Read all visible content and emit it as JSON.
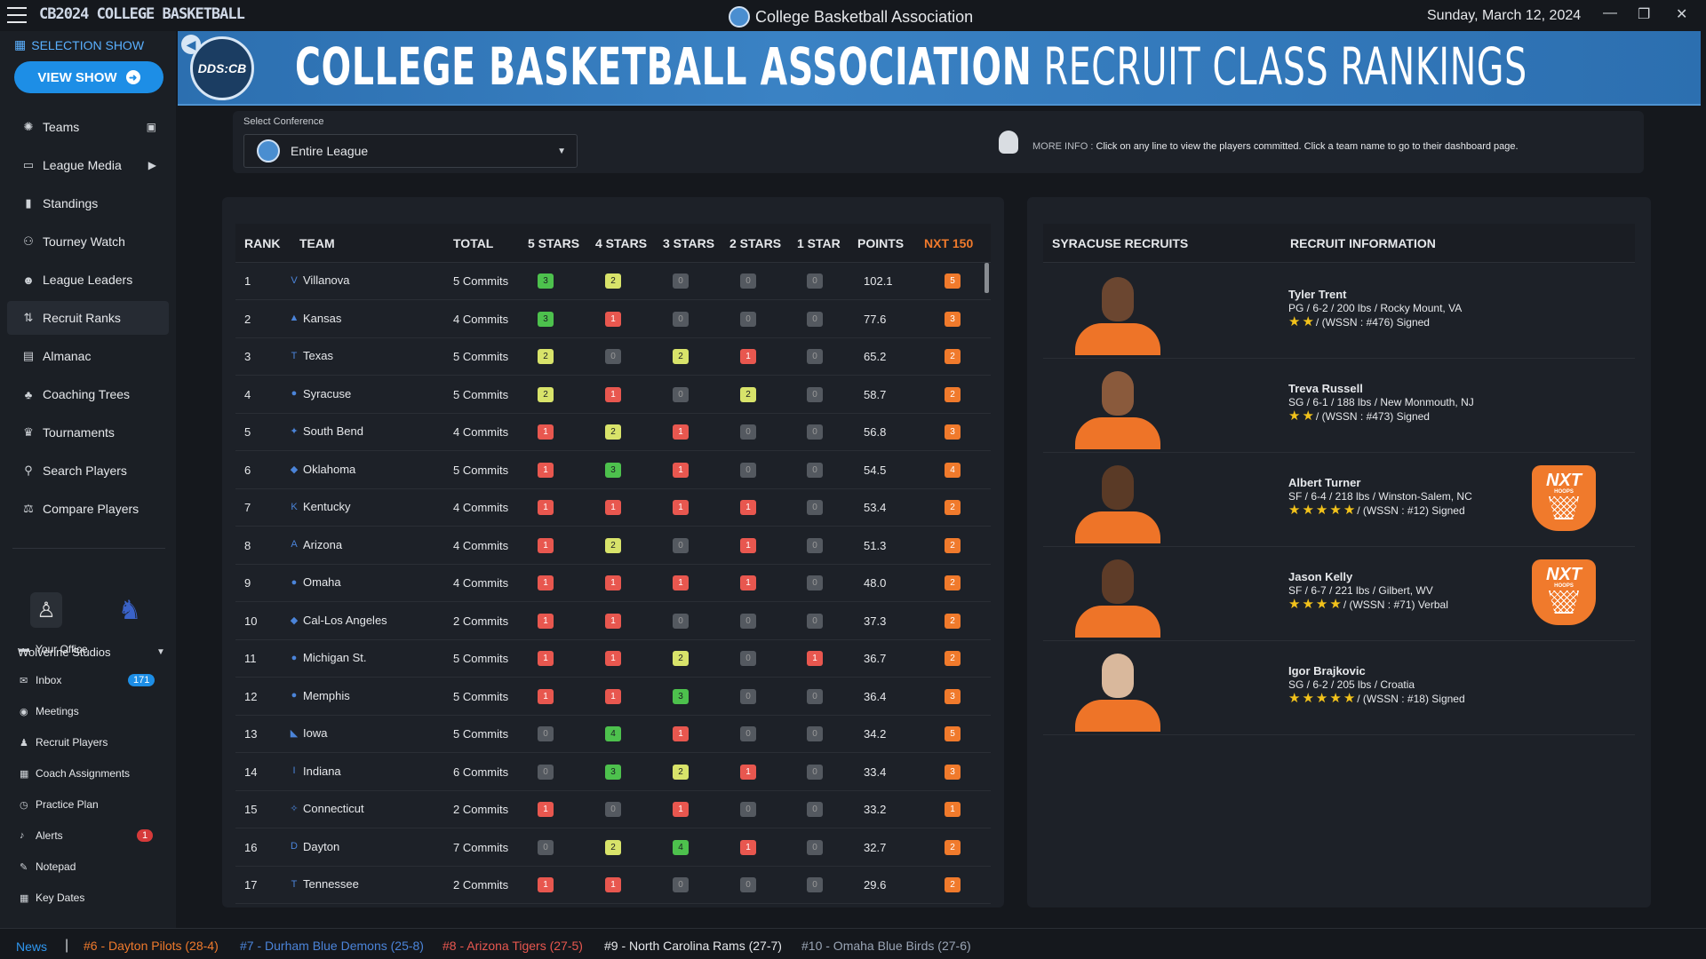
{
  "app": {
    "logo_text": "CB2024 COLLEGE BASKETBALL",
    "window_title": "College Basketball Association",
    "date": "Sunday, March 12, 2024"
  },
  "sidebar": {
    "selection_show": "SELECTION SHOW",
    "view_show": "VIEW SHOW",
    "items": [
      {
        "label": "Teams",
        "icon": "teams-icon"
      },
      {
        "label": "League Media",
        "icon": "media-icon"
      },
      {
        "label": "Standings",
        "icon": "standings-icon"
      },
      {
        "label": "Tourney Watch",
        "icon": "binoculars-icon"
      },
      {
        "label": "League Leaders",
        "icon": "leaders-icon"
      },
      {
        "label": "Recruit Ranks",
        "icon": "sort-icon"
      },
      {
        "label": "Almanac",
        "icon": "almanac-icon"
      },
      {
        "label": "Coaching Trees",
        "icon": "tree-icon"
      },
      {
        "label": "Tournaments",
        "icon": "trophy-icon"
      },
      {
        "label": "Search Players",
        "icon": "search-icon"
      },
      {
        "label": "Compare Players",
        "icon": "compare-icon"
      }
    ],
    "studio": "Wolverine Studios",
    "sub_items": [
      {
        "label": "Your Office"
      },
      {
        "label": "Inbox",
        "badge": "171"
      },
      {
        "label": "Meetings"
      },
      {
        "label": "Recruit Players"
      },
      {
        "label": "Coach Assignments"
      },
      {
        "label": "Practice Plan"
      },
      {
        "label": "Alerts",
        "badge": "1"
      },
      {
        "label": "Notepad"
      },
      {
        "label": "Key Dates"
      }
    ]
  },
  "banner": {
    "logo_text": "DDS:CB",
    "title_bold": "COLLEGE BASKETBALL ASSOCIATION",
    "title_thin": " RECRUIT CLASS RANKINGS"
  },
  "conference": {
    "label": "Select Conference",
    "selected": "Entire League",
    "more_info_label": "MORE INFO :",
    "more_info_text": " Click on any line to view the players committed. Click a team name to go to their dashboard page."
  },
  "table": {
    "headers": [
      "RANK",
      "TEAM",
      "TOTAL",
      "5 STARS",
      "4 STARS",
      "3 STARS",
      "2 STARS",
      "1 STAR",
      "POINTS",
      "NXT 150"
    ],
    "rows": [
      {
        "rank": "1",
        "team": "Villanova",
        "icon": "V",
        "total": "5 Commits",
        "s5": "3",
        "s4": "2",
        "s3": "0",
        "s2": "0",
        "s1": "0",
        "points": "102.1",
        "nxt": "5"
      },
      {
        "rank": "2",
        "team": "Kansas",
        "icon": "▲",
        "total": "4 Commits",
        "s5": "3",
        "s4": "1",
        "s3": "0",
        "s2": "0",
        "s1": "0",
        "points": "77.6",
        "nxt": "3"
      },
      {
        "rank": "3",
        "team": "Texas",
        "icon": "T",
        "total": "5 Commits",
        "s5": "2",
        "s4": "0",
        "s3": "2",
        "s2": "1",
        "s1": "0",
        "points": "65.2",
        "nxt": "2"
      },
      {
        "rank": "4",
        "team": "Syracuse",
        "icon": "●",
        "total": "5 Commits",
        "s5": "2",
        "s4": "1",
        "s3": "0",
        "s2": "2",
        "s1": "0",
        "points": "58.7",
        "nxt": "2"
      },
      {
        "rank": "5",
        "team": "South Bend",
        "icon": "✦",
        "total": "4 Commits",
        "s5": "1",
        "s4": "2",
        "s3": "1",
        "s2": "0",
        "s1": "0",
        "points": "56.8",
        "nxt": "3"
      },
      {
        "rank": "6",
        "team": "Oklahoma",
        "icon": "◆",
        "total": "5 Commits",
        "s5": "1",
        "s4": "3",
        "s3": "1",
        "s2": "0",
        "s1": "0",
        "points": "54.5",
        "nxt": "4"
      },
      {
        "rank": "7",
        "team": "Kentucky",
        "icon": "K",
        "total": "4 Commits",
        "s5": "1",
        "s4": "1",
        "s3": "1",
        "s2": "1",
        "s1": "0",
        "points": "53.4",
        "nxt": "2"
      },
      {
        "rank": "8",
        "team": "Arizona",
        "icon": "A",
        "total": "4 Commits",
        "s5": "1",
        "s4": "2",
        "s3": "0",
        "s2": "1",
        "s1": "0",
        "points": "51.3",
        "nxt": "2"
      },
      {
        "rank": "9",
        "team": "Omaha",
        "icon": "●",
        "total": "4 Commits",
        "s5": "1",
        "s4": "1",
        "s3": "1",
        "s2": "1",
        "s1": "0",
        "points": "48.0",
        "nxt": "2"
      },
      {
        "rank": "10",
        "team": "Cal-Los Angeles",
        "icon": "◆",
        "total": "2 Commits",
        "s5": "1",
        "s4": "1",
        "s3": "0",
        "s2": "0",
        "s1": "0",
        "points": "37.3",
        "nxt": "2"
      },
      {
        "rank": "11",
        "team": "Michigan St.",
        "icon": "●",
        "total": "5 Commits",
        "s5": "1",
        "s4": "1",
        "s3": "2",
        "s2": "0",
        "s1": "1",
        "points": "36.7",
        "nxt": "2"
      },
      {
        "rank": "12",
        "team": "Memphis",
        "icon": "●",
        "total": "5 Commits",
        "s5": "1",
        "s4": "1",
        "s3": "3",
        "s2": "0",
        "s1": "0",
        "points": "36.4",
        "nxt": "3"
      },
      {
        "rank": "13",
        "team": "Iowa",
        "icon": "◣",
        "total": "5 Commits",
        "s5": "0",
        "s4": "4",
        "s3": "1",
        "s2": "0",
        "s1": "0",
        "points": "34.2",
        "nxt": "5"
      },
      {
        "rank": "14",
        "team": "Indiana",
        "icon": "I",
        "total": "6 Commits",
        "s5": "0",
        "s4": "3",
        "s3": "2",
        "s2": "1",
        "s1": "0",
        "points": "33.4",
        "nxt": "3"
      },
      {
        "rank": "15",
        "team": "Connecticut",
        "icon": "✧",
        "total": "2 Commits",
        "s5": "1",
        "s4": "0",
        "s3": "1",
        "s2": "0",
        "s1": "0",
        "points": "33.2",
        "nxt": "1"
      },
      {
        "rank": "16",
        "team": "Dayton",
        "icon": "D",
        "total": "7 Commits",
        "s5": "0",
        "s4": "2",
        "s3": "4",
        "s2": "1",
        "s1": "0",
        "points": "32.7",
        "nxt": "2"
      },
      {
        "rank": "17",
        "team": "Tennessee",
        "icon": "T",
        "total": "2 Commits",
        "s5": "1",
        "s4": "1",
        "s3": "0",
        "s2": "0",
        "s1": "0",
        "points": "29.6",
        "nxt": "2"
      }
    ]
  },
  "recruits": {
    "header_left": "SYRACUSE RECRUITS",
    "header_right": "RECRUIT INFORMATION",
    "players": [
      {
        "name": "Tyler Trent",
        "info": "PG / 6-2 / 200 lbs / Rocky Mount, VA",
        "stars": 2,
        "rank": " / (WSSN : #476) Signed",
        "nxt": false,
        "skin": "#6b4630"
      },
      {
        "name": "Treva Russell",
        "info": "SG / 6-1 / 188 lbs / New Monmouth, NJ",
        "stars": 2,
        "rank": " / (WSSN : #473) Signed",
        "nxt": false,
        "skin": "#8a5a3c"
      },
      {
        "name": "Albert Turner",
        "info": "SF / 6-4 / 218 lbs / Winston-Salem, NC",
        "stars": 5,
        "rank": " / (WSSN : #12) Signed",
        "nxt": true,
        "skin": "#5a3a26"
      },
      {
        "name": "Jason Kelly",
        "info": "SF / 6-7 / 221 lbs / Gilbert, WV",
        "stars": 4,
        "rank": " / (WSSN : #71) Verbal",
        "nxt": true,
        "skin": "#5e3c28"
      },
      {
        "name": "Igor Brajkovic",
        "info": "SG / 6-2 / 205 lbs / Croatia",
        "stars": 5,
        "rank": " / (WSSN : #18) Signed",
        "nxt": false,
        "skin": "#d9b89c"
      }
    ],
    "nxt_label": "NXT",
    "nxt_sub": "HOOPS"
  },
  "ticker": {
    "news_label": "News",
    "items": [
      {
        "text": "#6 - Dayton Pilots (28-4)",
        "color": "#f07a2c"
      },
      {
        "text": "#7 - Durham Blue Demons (25-8)",
        "color": "#4b84d9"
      },
      {
        "text": "#8 - Arizona Tigers (27-5)",
        "color": "#e8574f"
      },
      {
        "text": "#9 - North Carolina Rams (27-7)",
        "color": "#e6e8eb"
      },
      {
        "text": "#10 - Omaha Blue Birds (27-6)",
        "color": "#9aa5b5"
      }
    ]
  },
  "colors": {
    "accent": "#1d8ee6",
    "orange": "#f07a2c",
    "banner": "#2c6fb0"
  }
}
